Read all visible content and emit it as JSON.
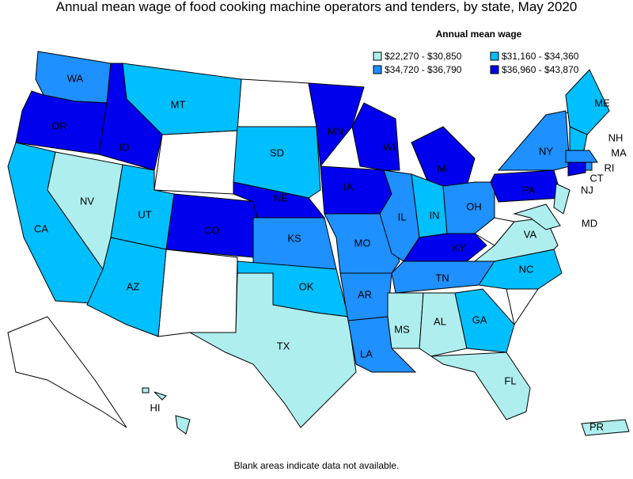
{
  "title": "Annual mean wage of food cooking machine operators and tenders, by state, May 2020",
  "legend": {
    "title": "Annual mean wage",
    "items": [
      {
        "label": "$22,270 - $30,850",
        "color": "#afeeee"
      },
      {
        "label": "$31,160 - $34,360",
        "color": "#00bfff"
      },
      {
        "label": "$34,720 - $36,790",
        "color": "#1e90ff"
      },
      {
        "label": "$36,960 - $43,870",
        "color": "#0000ee"
      }
    ]
  },
  "states": [
    {
      "label": "WA",
      "color": "#1e90ff"
    },
    {
      "label": "OR",
      "color": "#0000ee"
    },
    {
      "label": "CA",
      "color": "#00bfff"
    },
    {
      "label": "NV",
      "color": "#afeeee"
    },
    {
      "label": "ID",
      "color": "#0000ee"
    },
    {
      "label": "MT",
      "color": "#00bfff"
    },
    {
      "label": "UT",
      "color": "#00bfff"
    },
    {
      "label": "AZ",
      "color": "#00bfff"
    },
    {
      "label": "CO",
      "color": "#0000ee"
    },
    {
      "label": "SD",
      "color": "#00bfff"
    },
    {
      "label": "NE",
      "color": "#0000ee"
    },
    {
      "label": "KS",
      "color": "#1e90ff"
    },
    {
      "label": "OK",
      "color": "#00bfff"
    },
    {
      "label": "TX",
      "color": "#afeeee"
    },
    {
      "label": "MN",
      "color": "#0000ee"
    },
    {
      "label": "IA",
      "color": "#0000ee"
    },
    {
      "label": "MO",
      "color": "#1e90ff"
    },
    {
      "label": "AR",
      "color": "#1e90ff"
    },
    {
      "label": "LA",
      "color": "#1e90ff"
    },
    {
      "label": "WI",
      "color": "#0000ee"
    },
    {
      "label": "IL",
      "color": "#1e90ff"
    },
    {
      "label": "MI",
      "color": "#0000ee"
    },
    {
      "label": "IN",
      "color": "#00bfff"
    },
    {
      "label": "OH",
      "color": "#1e90ff"
    },
    {
      "label": "KY",
      "color": "#0000ee"
    },
    {
      "label": "TN",
      "color": "#1e90ff"
    },
    {
      "label": "MS",
      "color": "#afeeee"
    },
    {
      "label": "AL",
      "color": "#afeeee"
    },
    {
      "label": "GA",
      "color": "#00bfff"
    },
    {
      "label": "FL",
      "color": "#afeeee"
    },
    {
      "label": "NC",
      "color": "#00bfff"
    },
    {
      "label": "VA",
      "color": "#afeeee"
    },
    {
      "label": "PA",
      "color": "#0000ee"
    },
    {
      "label": "NY",
      "color": "#1e90ff"
    },
    {
      "label": "ME",
      "color": "#00bfff"
    },
    {
      "label": "NH",
      "color": "#00bfff"
    },
    {
      "label": "MA",
      "color": "#1e90ff"
    },
    {
      "label": "RI",
      "color": "#1e90ff"
    },
    {
      "label": "CT",
      "color": "#0000ee"
    },
    {
      "label": "NJ",
      "color": "#afeeee"
    },
    {
      "label": "MD",
      "color": "#afeeee"
    },
    {
      "label": "HI",
      "color": "#afeeee"
    },
    {
      "label": "PR",
      "color": "#afeeee"
    }
  ],
  "footnote": "Blank areas indicate data not available."
}
